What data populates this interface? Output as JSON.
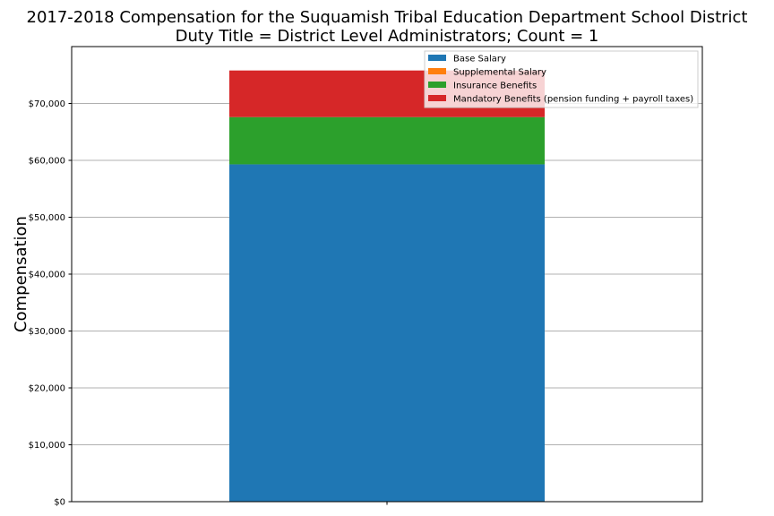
{
  "chart_data": {
    "type": "bar",
    "stacked": true,
    "title": "2017-2018 Compensation for the Suquamish Tribal Education Department School District",
    "subtitle": "Duty Title = District Level Administrators; Count = 1",
    "xlabel": "",
    "ylabel": "Compensation",
    "categories": [
      ""
    ],
    "ylim": [
      0,
      80000
    ],
    "yticks": [
      0,
      10000,
      20000,
      30000,
      40000,
      50000,
      60000,
      70000
    ],
    "ytick_labels": [
      "$0",
      "$10,000",
      "$20,000",
      "$30,000",
      "$40,000",
      "$50,000",
      "$60,000",
      "$70,000"
    ],
    "grid": "y",
    "legend_position": "top-right",
    "series": [
      {
        "name": "Base Salary",
        "values": [
          59300
        ],
        "color": "#1f77b4"
      },
      {
        "name": "Supplemental Salary",
        "values": [
          0
        ],
        "color": "#ff7f0e"
      },
      {
        "name": "Insurance Benefits",
        "values": [
          8300
        ],
        "color": "#2ca02c"
      },
      {
        "name": "Mandatory Benefits (pension funding + payroll taxes)",
        "values": [
          8200
        ],
        "color": "#d62728"
      }
    ]
  }
}
